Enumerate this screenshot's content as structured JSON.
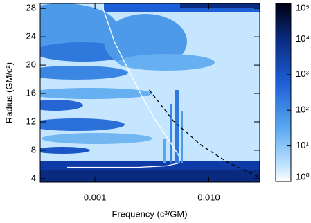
{
  "chart_data": {
    "type": "contour",
    "xlabel": "Frequency (c³/GM)",
    "ylabel": "Radius (GM/c²)",
    "xlog": true,
    "xlim": [
      0.00033,
      0.028
    ],
    "xticks": [
      0.001,
      {
        "value": 0.01,
        "label": "0.010"
      }
    ],
    "ylim": [
      3.5,
      28.7
    ],
    "yticks": [
      4,
      8,
      12,
      16,
      20,
      24,
      28
    ],
    "series": [
      {
        "color": "#ffffff",
        "dash": false,
        "x": [
          0.00115,
          0.00148,
          0.00196,
          0.0026,
          0.00344,
          0.00456,
          0.00547,
          0.0055,
          0.00425,
          0.00242,
          0.00057
        ],
        "values": [
          28.5,
          23.3,
          19.4,
          15.5,
          12.1,
          9.2,
          7.2,
          6.2,
          5.8,
          5.6,
          5.6
        ]
      },
      {
        "color": "#000000",
        "dash": true,
        "x": [
          0.003,
          0.0049,
          0.0086,
          0.015,
          0.027
        ],
        "values": [
          16.5,
          12.1,
          8.7,
          6.2,
          4.3
        ]
      }
    ],
    "colorbar": {
      "log": true,
      "lim": [
        1,
        100000
      ],
      "ticks": [
        {
          "value": 1,
          "label": "10⁰"
        },
        {
          "value": 10,
          "label": "10¹"
        },
        {
          "value": 100,
          "label": "10²"
        },
        {
          "value": 1000,
          "label": "10³"
        },
        {
          "value": 10000,
          "label": "10⁴"
        },
        {
          "value": 100000,
          "label": "10⁵"
        }
      ]
    }
  }
}
